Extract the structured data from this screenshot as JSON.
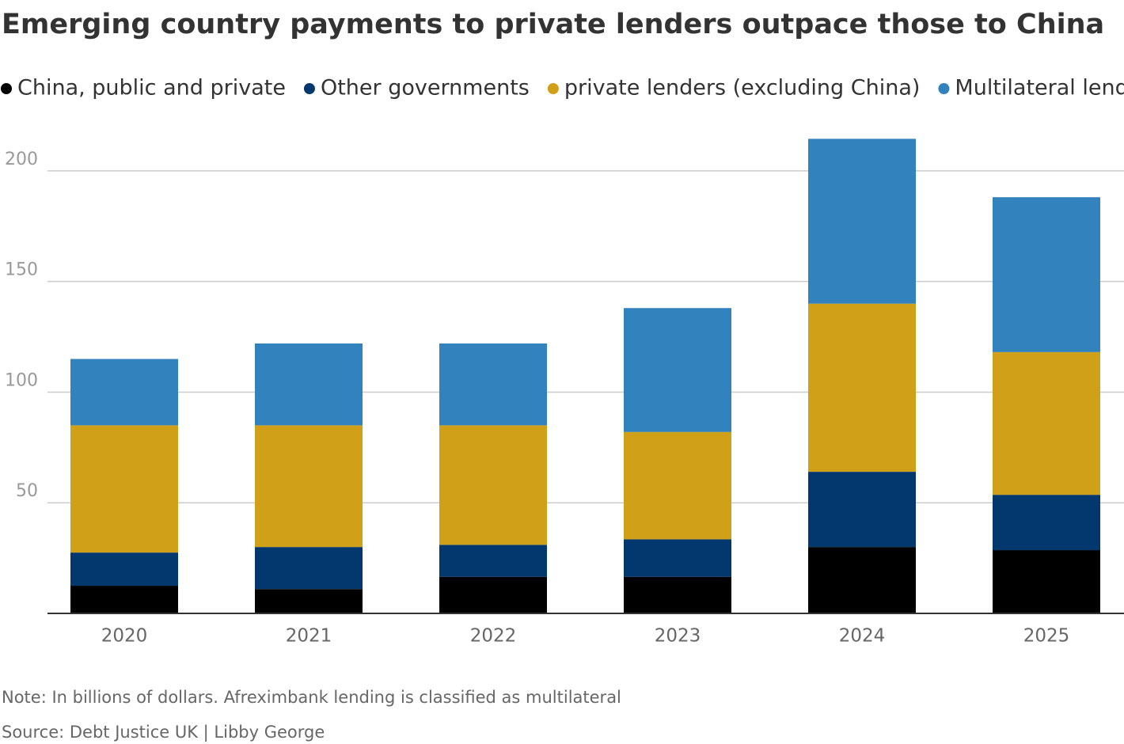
{
  "chart_data": {
    "type": "stacked_bar",
    "title": "Emerging country payments to private lenders outpace those to China",
    "categories": [
      "2020",
      "2021",
      "2022",
      "2023",
      "2024",
      "2025"
    ],
    "series": [
      {
        "name": "China, public and private",
        "color": "#000000",
        "values": [
          12.5,
          11,
          16.5,
          16.5,
          30,
          28.6
        ]
      },
      {
        "name": "Other governments",
        "color": "#02386e",
        "values": [
          15,
          19,
          14.5,
          17,
          34,
          25
        ]
      },
      {
        "name": "private lenders (excluding China)",
        "color": "#cfa018",
        "values": [
          57.5,
          55,
          54,
          48.5,
          76,
          64.5
        ]
      },
      {
        "name": "Multilateral lenders",
        "color": "#3182bd",
        "values": [
          30,
          37,
          37,
          56,
          74.5,
          70
        ]
      }
    ],
    "ylim": [
      0,
      220
    ],
    "yticks": [
      50,
      100,
      150,
      200
    ],
    "grid": true,
    "note": "Note: In billions of dollars. Afreximbank lending is classified as multilateral",
    "source": "Source: Debt Justice UK | Libby George"
  }
}
